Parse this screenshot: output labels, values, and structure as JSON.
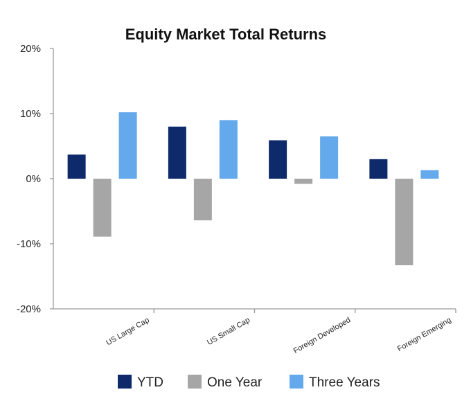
{
  "chart_data": {
    "type": "bar",
    "title": "Equity Market Total Returns",
    "categories": [
      "US Large Cap",
      "US Small Cap",
      "Foreign Developed",
      "Foreign Emerging"
    ],
    "series": [
      {
        "name": "YTD",
        "color": "#0e2a6b",
        "values": [
          3.7,
          8.0,
          5.9,
          3.0
        ]
      },
      {
        "name": "One Year",
        "color": "#a6a6a6",
        "values": [
          -8.9,
          -6.4,
          -0.8,
          -13.3
        ]
      },
      {
        "name": "Three Years",
        "color": "#64a9ec",
        "values": [
          10.2,
          9.0,
          6.5,
          1.3
        ]
      }
    ],
    "ylim": [
      -20,
      20
    ],
    "yticks": [
      -20,
      -10,
      0,
      10,
      20
    ],
    "ytick_labels": [
      "-20%",
      "-10%",
      "0%",
      "10%",
      "20%"
    ],
    "legend_position": "bottom",
    "grid": false
  }
}
